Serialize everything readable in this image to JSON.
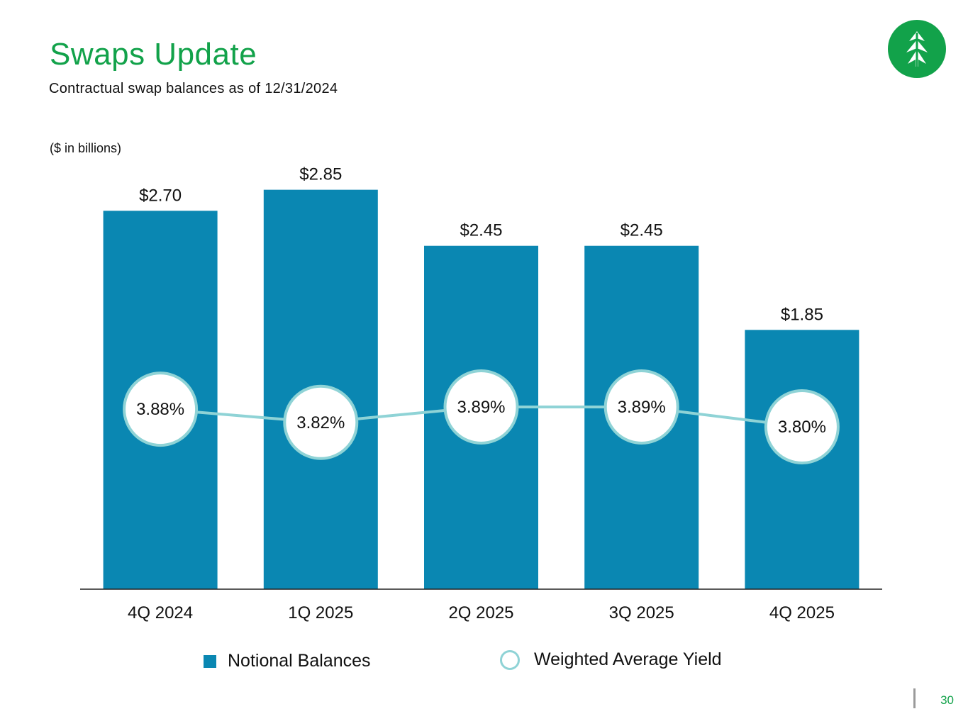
{
  "title": "Swaps Update",
  "subtitle": "Contractual swap balances as of 12/31/2024",
  "unit_note": "($ in billions)",
  "page_number": "30",
  "colors": {
    "brand_green": "#12A24A",
    "bar": "#0A87B2",
    "yield_line": "#8FD3D6",
    "axis": "#222222"
  },
  "legend": {
    "bars_label": "Notional Balances",
    "line_label": "Weighted Average Yield"
  },
  "chart_data": {
    "type": "bar",
    "title": "Swaps Update",
    "subtitle": "Contractual swap balances as of 12/31/2024",
    "ylabel": "($ in billions)",
    "xlabel": "",
    "ylim": [
      0,
      3.0
    ],
    "categories": [
      "4Q 2024",
      "1Q 2025",
      "2Q 2025",
      "3Q 2025",
      "4Q 2025"
    ],
    "series": [
      {
        "name": "Notional Balances",
        "type": "bar",
        "values": [
          2.7,
          2.85,
          2.45,
          2.45,
          1.85
        ],
        "labels": [
          "$2.70",
          "$2.85",
          "$2.45",
          "$2.45",
          "$1.85"
        ]
      },
      {
        "name": "Weighted Average Yield",
        "type": "line",
        "values": [
          3.88,
          3.82,
          3.89,
          3.89,
          3.8
        ],
        "labels": [
          "3.88%",
          "3.82%",
          "3.89%",
          "3.89%",
          "3.80%"
        ],
        "ylim": [
          3.7,
          3.95
        ]
      }
    ],
    "grid": false,
    "legend_position": "bottom"
  }
}
